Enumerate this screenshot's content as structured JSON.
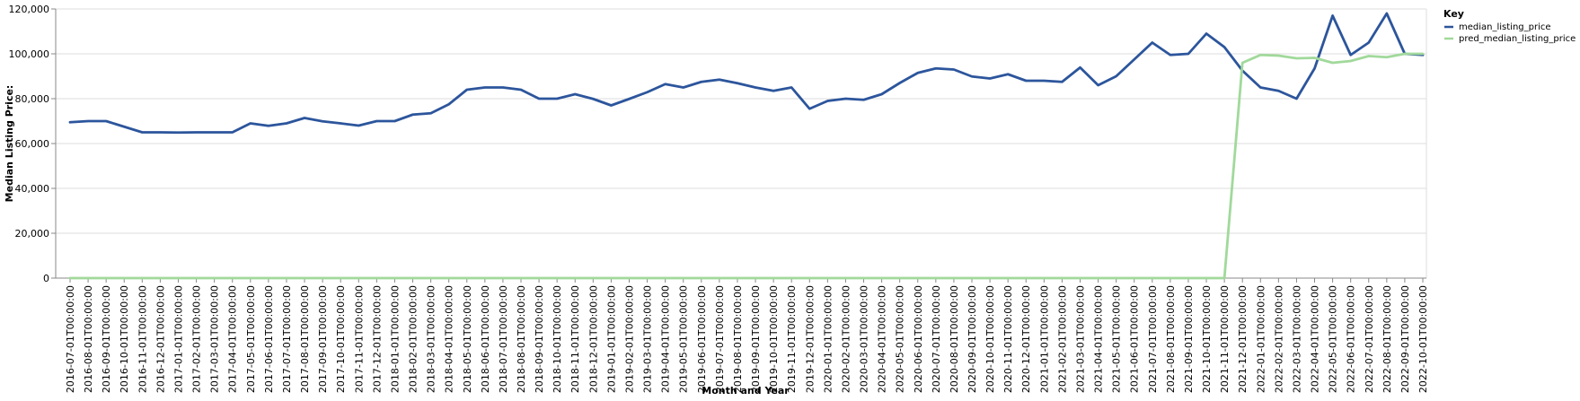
{
  "chart_data": {
    "type": "line",
    "title": "",
    "xlabel": "Month and Year",
    "ylabel": "Median Listing Price:",
    "ylim": [
      0,
      120000
    ],
    "y_ticks": [
      "0",
      "20,000",
      "40,000",
      "60,000",
      "80,000",
      "100,000",
      "120,000"
    ],
    "y_tick_values": [
      0,
      20000,
      40000,
      60000,
      80000,
      100000,
      120000
    ],
    "grid": true,
    "legend": {
      "title": "Key",
      "position": "top-right"
    },
    "x": [
      "2016-07-01T00:00:00",
      "2016-08-01T00:00:00",
      "2016-09-01T00:00:00",
      "2016-10-01T00:00:00",
      "2016-11-01T00:00:00",
      "2016-12-01T00:00:00",
      "2017-01-01T00:00:00",
      "2017-02-01T00:00:00",
      "2017-03-01T00:00:00",
      "2017-04-01T00:00:00",
      "2017-05-01T00:00:00",
      "2017-06-01T00:00:00",
      "2017-07-01T00:00:00",
      "2017-08-01T00:00:00",
      "2017-09-01T00:00:00",
      "2017-10-01T00:00:00",
      "2017-11-01T00:00:00",
      "2017-12-01T00:00:00",
      "2018-01-01T00:00:00",
      "2018-02-01T00:00:00",
      "2018-03-01T00:00:00",
      "2018-04-01T00:00:00",
      "2018-05-01T00:00:00",
      "2018-06-01T00:00:00",
      "2018-07-01T00:00:00",
      "2018-08-01T00:00:00",
      "2018-09-01T00:00:00",
      "2018-10-01T00:00:00",
      "2018-11-01T00:00:00",
      "2018-12-01T00:00:00",
      "2019-01-01T00:00:00",
      "2019-02-01T00:00:00",
      "2019-03-01T00:00:00",
      "2019-04-01T00:00:00",
      "2019-05-01T00:00:00",
      "2019-06-01T00:00:00",
      "2019-07-01T00:00:00",
      "2019-08-01T00:00:00",
      "2019-09-01T00:00:00",
      "2019-10-01T00:00:00",
      "2019-11-01T00:00:00",
      "2019-12-01T00:00:00",
      "2020-01-01T00:00:00",
      "2020-02-01T00:00:00",
      "2020-03-01T00:00:00",
      "2020-04-01T00:00:00",
      "2020-05-01T00:00:00",
      "2020-06-01T00:00:00",
      "2020-07-01T00:00:00",
      "2020-08-01T00:00:00",
      "2020-09-01T00:00:00",
      "2020-10-01T00:00:00",
      "2020-11-01T00:00:00",
      "2020-12-01T00:00:00",
      "2021-01-01T00:00:00",
      "2021-02-01T00:00:00",
      "2021-03-01T00:00:00",
      "2021-04-01T00:00:00",
      "2021-05-01T00:00:00",
      "2021-06-01T00:00:00",
      "2021-07-01T00:00:00",
      "2021-08-01T00:00:00",
      "2021-09-01T00:00:00",
      "2021-10-01T00:00:00",
      "2021-11-01T00:00:00",
      "2021-12-01T00:00:00",
      "2022-01-01T00:00:00",
      "2022-02-01T00:00:00",
      "2022-03-01T00:00:00",
      "2022-04-01T00:00:00",
      "2022-05-01T00:00:00",
      "2022-06-01T00:00:00",
      "2022-07-01T00:00:00",
      "2022-08-01T00:00:00",
      "2022-09-01T00:00:00",
      "2022-10-01T00:00:00"
    ],
    "series": [
      {
        "name": "median_listing_price",
        "color": "#2c559c",
        "values": [
          69500,
          70000,
          70000,
          67500,
          65000,
          65000,
          64900,
          65000,
          65000,
          65000,
          69000,
          67900,
          69000,
          71400,
          69900,
          69000,
          68000,
          70000,
          70000,
          72900,
          73500,
          77500,
          84000,
          85000,
          85000,
          84000,
          80000,
          80000,
          82000,
          79900,
          77000,
          79900,
          82900,
          86500,
          85000,
          87500,
          88500,
          86900,
          85000,
          83500,
          85000,
          75500,
          79000,
          80000,
          79500,
          82000,
          87000,
          91500,
          93500,
          93000,
          89900,
          89000,
          90900,
          88000,
          88000,
          87500,
          93900,
          86000,
          90000,
          97500,
          105000,
          99500,
          100000,
          109000,
          103000,
          92500,
          85000,
          83500,
          80000,
          93500,
          117000,
          99500,
          105000,
          118000,
          100000,
          99500
        ]
      },
      {
        "name": "pred_median_listing_price",
        "color": "#a1d99b",
        "values": [
          0,
          0,
          0,
          0,
          0,
          0,
          0,
          0,
          0,
          0,
          0,
          0,
          0,
          0,
          0,
          0,
          0,
          0,
          0,
          0,
          0,
          0,
          0,
          0,
          0,
          0,
          0,
          0,
          0,
          0,
          0,
          0,
          0,
          0,
          0,
          0,
          0,
          0,
          0,
          0,
          0,
          0,
          0,
          0,
          0,
          0,
          0,
          0,
          0,
          0,
          0,
          0,
          0,
          0,
          0,
          0,
          0,
          0,
          0,
          0,
          0,
          0,
          0,
          0,
          0,
          96000,
          99500,
          99200,
          98000,
          98200,
          96000,
          96800,
          99000,
          98500,
          100000,
          100000
        ]
      }
    ]
  }
}
